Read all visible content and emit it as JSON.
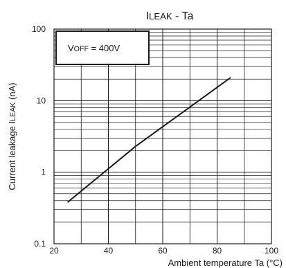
{
  "chart_data": {
    "type": "line",
    "title_main": "I",
    "title_sub": "LEAK",
    "title_tail": " - Ta",
    "xlabel": "Ambient temperature Ta (°C)",
    "ylabel_main": "Current leakage I",
    "ylabel_sub": "LEAK",
    "ylabel_tail": " (nA)",
    "annotation_main": "V",
    "annotation_sub": "OFF",
    "annotation_tail": " = 400V",
    "xlim": [
      20,
      100
    ],
    "ylim": [
      0.1,
      100
    ],
    "y_scale": "log",
    "x_ticks": [
      20,
      40,
      60,
      80,
      100
    ],
    "x_tick_labels": [
      "20",
      "40",
      "60",
      "80",
      "100"
    ],
    "y_ticks": [
      0.1,
      1,
      10,
      100
    ],
    "y_tick_labels": [
      "0.1",
      "1",
      "10",
      "100"
    ],
    "grid": true,
    "series": [
      {
        "x": [
          25,
          50,
          85
        ],
        "y": [
          0.38,
          2.3,
          21
        ],
        "color": "#1a1a1a"
      }
    ]
  }
}
